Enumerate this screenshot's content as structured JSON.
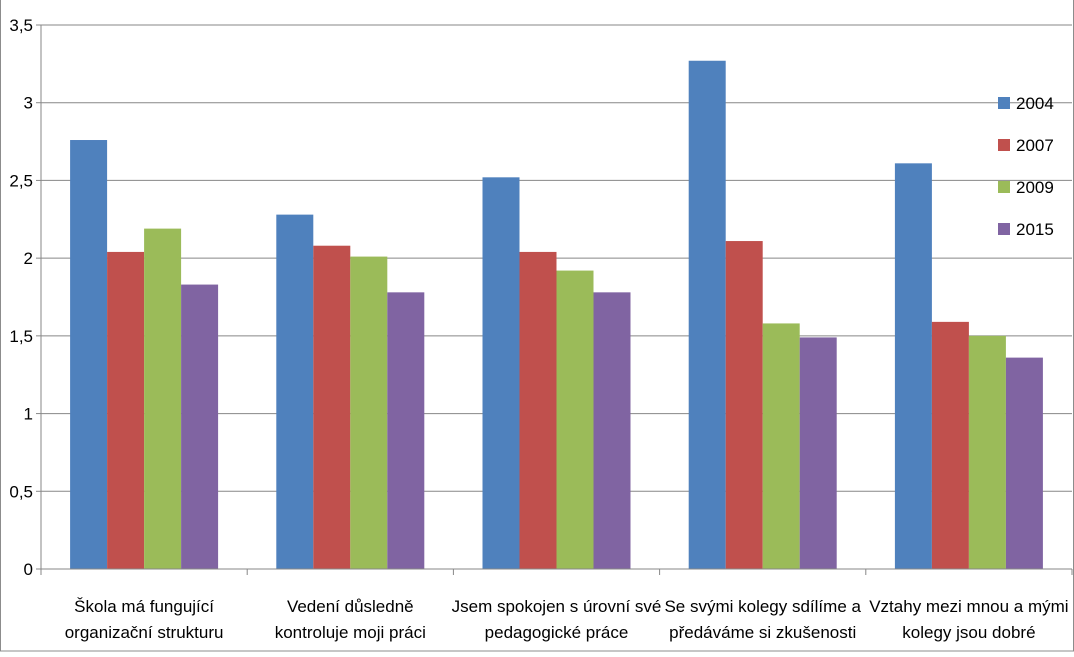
{
  "chart_data": {
    "type": "bar",
    "title": "",
    "xlabel": "",
    "ylabel": "",
    "ylim": [
      0,
      3.5
    ],
    "yticks": [
      "0",
      "0,5",
      "1",
      "1,5",
      "2",
      "2,5",
      "3",
      "3,5"
    ],
    "grid": true,
    "legend_position": "right",
    "categories": [
      [
        "Škola má fungující",
        "organizační strukturu"
      ],
      [
        "Vedení důsledně",
        "kontroluje moji práci"
      ],
      [
        "Jsem spokojen s úrovní své",
        "pedagogické práce"
      ],
      [
        "Se svými kolegy sdílíme a",
        "předáváme si zkušenosti"
      ],
      [
        "Vztahy mezi mnou a mými",
        "kolegy jsou dobré"
      ]
    ],
    "series": [
      {
        "name": "2004",
        "color": "#4F81BD",
        "values": [
          2.76,
          2.28,
          2.52,
          3.27,
          2.61
        ]
      },
      {
        "name": "2007",
        "color": "#C0504D",
        "values": [
          2.04,
          2.08,
          2.04,
          2.11,
          1.59
        ]
      },
      {
        "name": "2009",
        "color": "#9BBB59",
        "values": [
          2.19,
          2.01,
          1.92,
          1.58,
          1.5
        ]
      },
      {
        "name": "2015",
        "color": "#8064A2",
        "values": [
          1.83,
          1.78,
          1.78,
          1.49,
          1.36
        ]
      }
    ]
  }
}
